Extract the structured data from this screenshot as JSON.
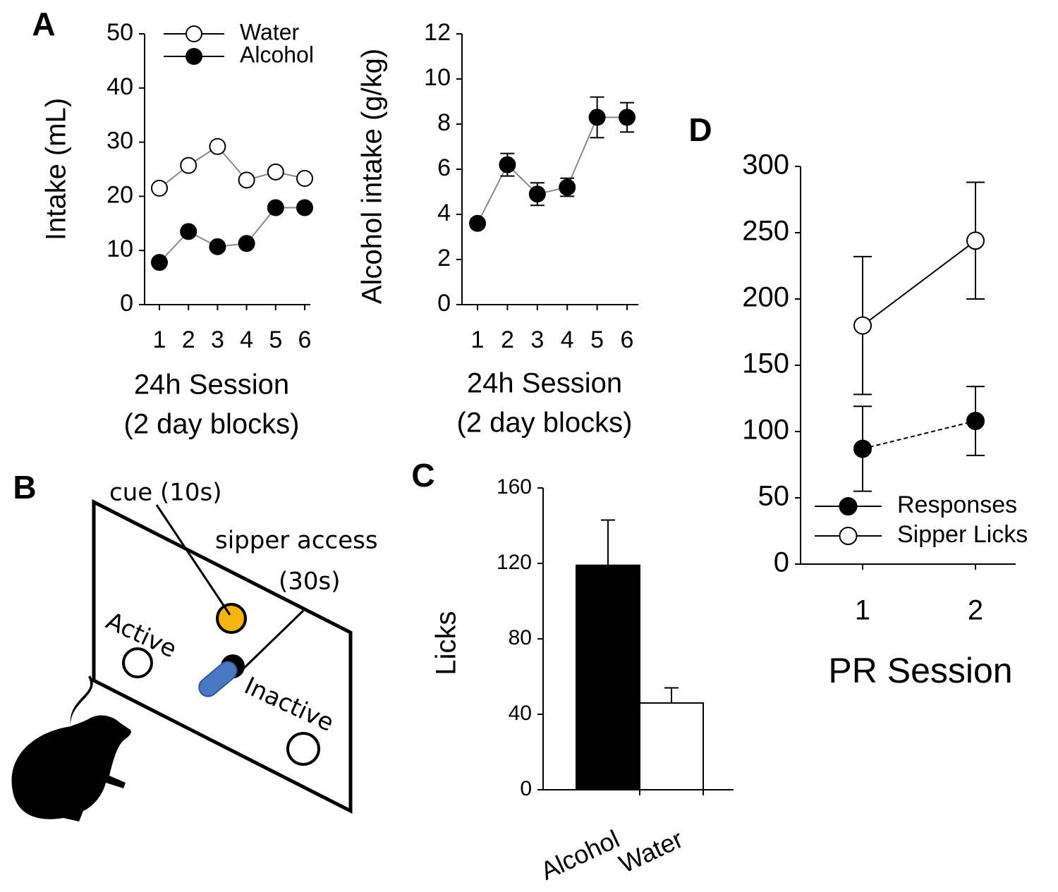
{
  "chart_data": [
    {
      "type": "line",
      "panel": "A",
      "ylabel": "Intake (mL)",
      "xlabel": [
        "24h Session",
        "(2 day blocks)"
      ],
      "categories": [
        "1",
        "2",
        "3",
        "4",
        "5",
        "6"
      ],
      "ylim": [
        0,
        50
      ],
      "yticks": [
        0,
        10,
        20,
        30,
        40,
        50
      ],
      "line_color": "#888888",
      "series": [
        {
          "name": "Water",
          "color": "#ffffff",
          "values": [
            21.5,
            25.7,
            29.2,
            23,
            24.5,
            23.3
          ]
        },
        {
          "name": "Alcohol",
          "color": "#000000",
          "values": [
            7.8,
            13.5,
            10.7,
            11.3,
            17.9,
            17.9
          ]
        }
      ]
    },
    {
      "type": "line",
      "ylabel": "Alcohol intake (g/kg)",
      "xlabel": [
        "24h Session",
        "(2 day blocks)"
      ],
      "categories": [
        "1",
        "2",
        "3",
        "4",
        "5",
        "6"
      ],
      "ylim": [
        0,
        12
      ],
      "yticks": [
        0,
        2,
        4,
        6,
        8,
        10,
        12
      ],
      "line_color": "#888888",
      "series": [
        {
          "color": "#000000",
          "values": [
            3.6,
            6.2,
            4.9,
            5.2,
            8.3,
            8.3
          ],
          "errors": [
            0.2,
            0.5,
            0.5,
            0.4,
            0.9,
            0.65
          ]
        }
      ]
    },
    {
      "type": "bar",
      "panel": "C",
      "ylabel": "Licks",
      "categories": [
        "Alcohol",
        "Water"
      ],
      "ylim": [
        0,
        160
      ],
      "yticks": [
        0,
        40,
        80,
        120,
        160
      ],
      "values": [
        119,
        46
      ],
      "errors": [
        24,
        8
      ],
      "colors": [
        "#000000",
        "#ffffff"
      ]
    },
    {
      "type": "line",
      "panel": "D",
      "xlabel": [
        "PR Session"
      ],
      "categories": [
        "1",
        "2"
      ],
      "ylim": [
        0,
        300
      ],
      "yticks": [
        0,
        50,
        100,
        150,
        200,
        250,
        300
      ],
      "line_color": "#000000",
      "series": [
        {
          "name": "Responses",
          "color": "#000000",
          "dashed": true,
          "values": [
            87,
            108
          ],
          "errors": [
            32,
            26
          ]
        },
        {
          "name": "Sipper Licks",
          "color": "#ffffff",
          "values": [
            180,
            244
          ],
          "errors": [
            52,
            44
          ]
        }
      ]
    }
  ],
  "diagram": {
    "panel": "B",
    "cue": "cue (10s)",
    "sipper": "sipper access",
    "sipper_time": "(30s)",
    "active": "Active",
    "inactive": "Inactive"
  }
}
